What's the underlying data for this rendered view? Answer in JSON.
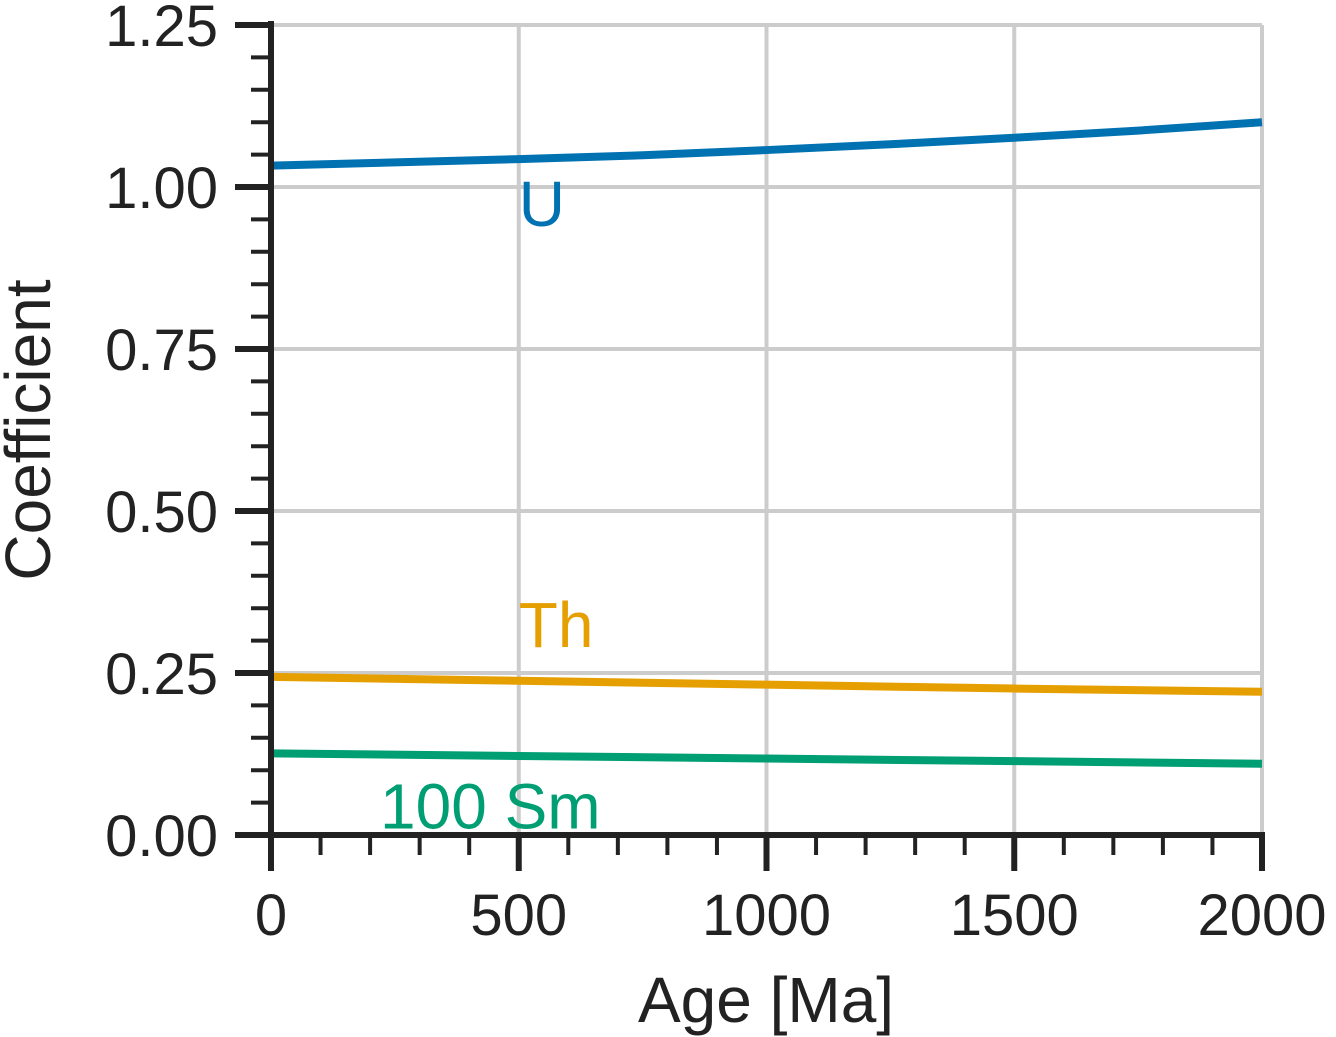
{
  "chart_data": {
    "type": "line",
    "title": "",
    "xlabel": "Age [Ma]",
    "ylabel": "Coefficient",
    "xlim": [
      0,
      2000
    ],
    "ylim": [
      0,
      1.25
    ],
    "grid": true,
    "x_ticks": [
      {
        "value": 0,
        "label": "0"
      },
      {
        "value": 500,
        "label": "500"
      },
      {
        "value": 1000,
        "label": "1000"
      },
      {
        "value": 1500,
        "label": "1500"
      },
      {
        "value": 2000,
        "label": "2000"
      }
    ],
    "y_ticks": [
      {
        "value": 0,
        "label": "0.00"
      },
      {
        "value": 0.25,
        "label": "0.25"
      },
      {
        "value": 0.5,
        "label": "0.50"
      },
      {
        "value": 0.75,
        "label": "0.75"
      },
      {
        "value": 1.0,
        "label": "1.00"
      },
      {
        "value": 1.25,
        "label": "1.25"
      }
    ],
    "x_minor_step": 100,
    "y_minor_step": 0.05,
    "series": [
      {
        "name": "U",
        "color": "#0072b2",
        "label_anchor": [
          500,
          0.94
        ],
        "x": [
          0,
          250,
          500,
          750,
          1000,
          1250,
          1500,
          1750,
          2000
        ],
        "y": [
          1.033,
          1.038,
          1.043,
          1.049,
          1.057,
          1.066,
          1.076,
          1.087,
          1.1
        ]
      },
      {
        "name": "Th",
        "color": "#e69f00",
        "label_anchor": [
          500,
          0.29
        ],
        "x": [
          0,
          500,
          1000,
          1500,
          2000
        ],
        "y": [
          0.244,
          0.238,
          0.232,
          0.226,
          0.221
        ]
      },
      {
        "name": "100 Sm",
        "color": "#009e73",
        "label_anchor": [
          220,
          0.01
        ],
        "x": [
          0,
          500,
          1000,
          1500,
          2000
        ],
        "y": [
          0.126,
          0.122,
          0.118,
          0.114,
          0.11
        ]
      }
    ]
  }
}
